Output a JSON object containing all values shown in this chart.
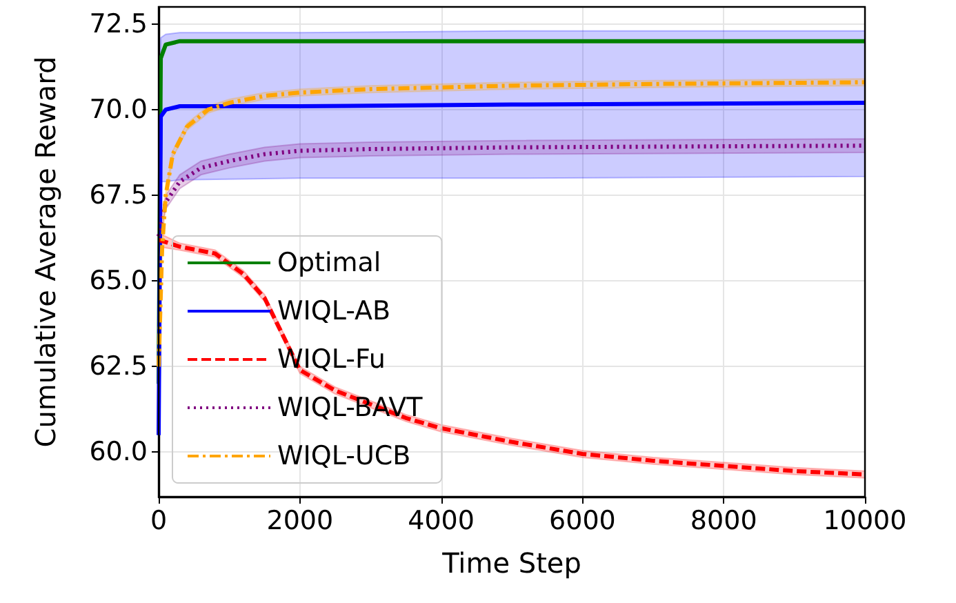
{
  "chart_data": {
    "type": "line",
    "xlabel": "Time Step",
    "ylabel": "Cumulative Average Reward",
    "xlim": [
      0,
      10000
    ],
    "xticks": [
      0,
      2000,
      4000,
      6000,
      8000,
      10000
    ],
    "ylim": [
      58.7,
      73.0
    ],
    "yticks": [
      {
        "value": 60,
        "label": "60.0"
      },
      {
        "value": 62.5,
        "label": "62.5"
      },
      {
        "value": 65,
        "label": "65.0"
      },
      {
        "value": 67.5,
        "label": "67.5"
      },
      {
        "value": 70,
        "label": "70.0"
      },
      {
        "value": 72.5,
        "label": "72.5"
      }
    ],
    "grid": true,
    "legend": "bottom left",
    "marker": "none",
    "series": [
      {
        "name": "Optimal",
        "color": "#008000",
        "line_style": "solid",
        "x": [
          0,
          30,
          100,
          300,
          2000,
          5000,
          10000
        ],
        "values": [
          62.0,
          71.5,
          71.9,
          72.0,
          72.0,
          72.0,
          72.0
        ]
      },
      {
        "name": "WIQL-AB",
        "color": "#0000ff",
        "line_style": "solid",
        "x": [
          0,
          30,
          100,
          300,
          2000,
          5000,
          10000
        ],
        "values": [
          60.5,
          69.8,
          70.0,
          70.1,
          70.1,
          70.15,
          70.2
        ],
        "lower": [
          60.3,
          67.9,
          67.9,
          67.95,
          68.0,
          68.0,
          68.05
        ],
        "upper": [
          60.7,
          72.1,
          72.2,
          72.25,
          72.25,
          72.3,
          72.3
        ]
      },
      {
        "name": "WIQL-Fu",
        "color": "#ff0000",
        "line_style": "dashed",
        "x": [
          0,
          300,
          800,
          1200,
          1500,
          2000,
          2500,
          3000,
          3500,
          4000,
          5000,
          6000,
          7000,
          8000,
          9000,
          10000
        ],
        "values": [
          66.2,
          66.0,
          65.8,
          65.2,
          64.5,
          62.4,
          61.8,
          61.4,
          61.0,
          60.7,
          60.3,
          59.95,
          59.75,
          59.6,
          59.45,
          59.35
        ],
        "lower": [
          66.0,
          65.9,
          65.7,
          65.1,
          64.4,
          62.3,
          61.7,
          61.3,
          60.9,
          60.6,
          60.2,
          59.85,
          59.65,
          59.5,
          59.35,
          59.25
        ],
        "upper": [
          66.4,
          66.1,
          65.9,
          65.3,
          64.6,
          62.5,
          61.9,
          61.5,
          61.1,
          60.8,
          60.4,
          60.05,
          59.85,
          59.7,
          59.55,
          59.45
        ]
      },
      {
        "name": "WIQL-BAVT",
        "color": "#800080",
        "line_style": "dotted",
        "x": [
          0,
          100,
          300,
          600,
          1000,
          1500,
          2000,
          3000,
          5000,
          10000
        ],
        "values": [
          66.3,
          67.3,
          67.9,
          68.3,
          68.5,
          68.7,
          68.8,
          68.85,
          68.9,
          68.95
        ],
        "lower": [
          66.1,
          67.1,
          67.7,
          68.1,
          68.3,
          68.5,
          68.6,
          68.65,
          68.7,
          68.75
        ],
        "upper": [
          66.5,
          67.5,
          68.1,
          68.5,
          68.7,
          68.9,
          69.0,
          69.05,
          69.1,
          69.15
        ]
      },
      {
        "name": "WIQL-UCB",
        "color": "#ffa500",
        "line_style": "dashdot",
        "x": [
          0,
          50,
          100,
          200,
          400,
          700,
          1000,
          1500,
          2000,
          3000,
          5000,
          7000,
          10000
        ],
        "values": [
          62.5,
          66.0,
          67.5,
          68.7,
          69.5,
          70.0,
          70.2,
          70.4,
          70.5,
          70.6,
          70.7,
          70.75,
          70.8
        ],
        "lower": [
          62.4,
          65.9,
          67.4,
          68.6,
          69.4,
          69.9,
          70.1,
          70.3,
          70.4,
          70.5,
          70.6,
          70.65,
          70.7
        ],
        "upper": [
          62.6,
          66.1,
          67.6,
          68.8,
          69.6,
          70.1,
          70.3,
          70.5,
          70.6,
          70.7,
          70.8,
          70.85,
          70.9
        ]
      }
    ]
  }
}
